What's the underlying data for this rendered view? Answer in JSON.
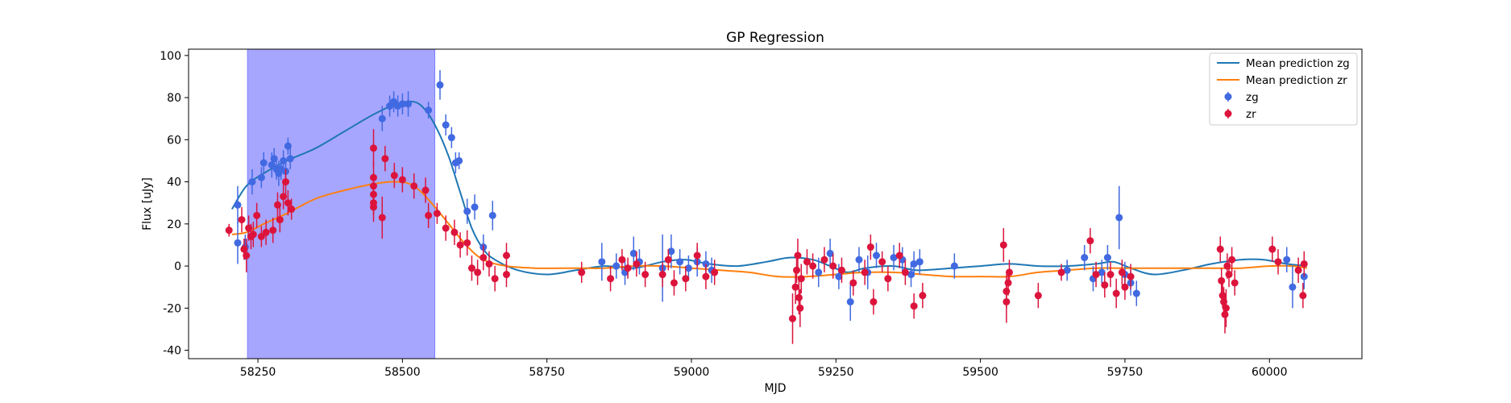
{
  "chart_data": {
    "type": "scatter",
    "title": "GP Regression",
    "xlabel": "MJD",
    "ylabel": "Flux [uJy]",
    "xlim": [
      58130,
      60160
    ],
    "ylim": [
      -44,
      103
    ],
    "xticks": [
      58250,
      58500,
      58750,
      59000,
      59250,
      59500,
      59750,
      60000
    ],
    "yticks": [
      -40,
      -20,
      0,
      20,
      40,
      60,
      80,
      100
    ],
    "grid": false,
    "legend_position": "top-right",
    "shaded_region": {
      "x_start": 58232,
      "x_end": 58556,
      "color": "#a6a6ff"
    },
    "colors": {
      "zg_line": "#1f77b4",
      "zr_line": "#ff7f0e",
      "zg_points": "#4169e1",
      "zr_points": "#dc143c"
    },
    "lines": [
      {
        "name": "Mean prediction zg",
        "color": "#1f77b4",
        "points": [
          [
            58205,
            27
          ],
          [
            58230,
            38
          ],
          [
            58260,
            44
          ],
          [
            58300,
            50
          ],
          [
            58350,
            56
          ],
          [
            58400,
            64
          ],
          [
            58450,
            72
          ],
          [
            58490,
            77
          ],
          [
            58520,
            78
          ],
          [
            58540,
            74
          ],
          [
            58560,
            65
          ],
          [
            58580,
            52
          ],
          [
            58600,
            35
          ],
          [
            58620,
            18
          ],
          [
            58640,
            8
          ],
          [
            58660,
            3
          ],
          [
            58700,
            -2
          ],
          [
            58750,
            -4
          ],
          [
            58800,
            -2
          ],
          [
            58850,
            0
          ],
          [
            58900,
            -1
          ],
          [
            58950,
            2
          ],
          [
            58990,
            3
          ],
          [
            59030,
            1
          ],
          [
            59080,
            0
          ],
          [
            59130,
            2
          ],
          [
            59170,
            4
          ],
          [
            59210,
            3
          ],
          [
            59240,
            0
          ],
          [
            59270,
            -3
          ],
          [
            59300,
            -1
          ],
          [
            59350,
            0
          ],
          [
            59390,
            -2
          ],
          [
            59450,
            -1
          ],
          [
            59500,
            0
          ],
          [
            59550,
            1
          ],
          [
            59600,
            0
          ],
          [
            59650,
            0
          ],
          [
            59700,
            1
          ],
          [
            59730,
            2
          ],
          [
            59760,
            -1
          ],
          [
            59800,
            -4
          ],
          [
            59850,
            -2
          ],
          [
            59900,
            1
          ],
          [
            59950,
            3
          ],
          [
            59990,
            3
          ],
          [
            60030,
            1
          ],
          [
            60065,
            0
          ]
        ]
      },
      {
        "name": "Mean prediction zr",
        "color": "#ff7f0e",
        "points": [
          [
            58205,
            15
          ],
          [
            58230,
            16
          ],
          [
            58260,
            20
          ],
          [
            58300,
            25
          ],
          [
            58350,
            32
          ],
          [
            58400,
            36
          ],
          [
            58450,
            39
          ],
          [
            58490,
            40
          ],
          [
            58520,
            38
          ],
          [
            58550,
            30
          ],
          [
            58580,
            20
          ],
          [
            58610,
            10
          ],
          [
            58640,
            3
          ],
          [
            58680,
            0
          ],
          [
            58730,
            -1
          ],
          [
            58800,
            -1
          ],
          [
            58850,
            -1
          ],
          [
            58900,
            0
          ],
          [
            58950,
            0
          ],
          [
            59000,
            -1
          ],
          [
            59050,
            -2
          ],
          [
            59100,
            -3
          ],
          [
            59150,
            -5
          ],
          [
            59200,
            -5
          ],
          [
            59250,
            -4
          ],
          [
            59300,
            -3
          ],
          [
            59350,
            -3
          ],
          [
            59400,
            -4
          ],
          [
            59450,
            -5
          ],
          [
            59500,
            -5
          ],
          [
            59550,
            -5
          ],
          [
            59600,
            -3
          ],
          [
            59650,
            -2
          ],
          [
            59700,
            -1
          ],
          [
            59750,
            -1
          ],
          [
            59800,
            -1
          ],
          [
            59850,
            -1
          ],
          [
            59900,
            -1
          ],
          [
            59950,
            -1
          ],
          [
            60000,
            0
          ],
          [
            60040,
            0
          ],
          [
            60065,
            -1
          ]
        ]
      }
    ],
    "series": [
      {
        "name": "zg",
        "color": "#4169e1",
        "points": [
          [
            58215,
            29,
            9
          ],
          [
            58215,
            11,
            10
          ],
          [
            58228,
            9,
            6
          ],
          [
            58240,
            40,
            6
          ],
          [
            58256,
            42,
            5
          ],
          [
            58260,
            49,
            5
          ],
          [
            58274,
            48,
            6
          ],
          [
            58278,
            51,
            5
          ],
          [
            58282,
            46,
            5
          ],
          [
            58286,
            44,
            6
          ],
          [
            58290,
            46,
            5
          ],
          [
            58294,
            50,
            5
          ],
          [
            58298,
            45,
            6
          ],
          [
            58302,
            57,
            4
          ],
          [
            58306,
            51,
            5
          ],
          [
            58465,
            70,
            6
          ],
          [
            58478,
            76,
            5
          ],
          [
            58485,
            78,
            5
          ],
          [
            58492,
            76,
            5
          ],
          [
            58500,
            77,
            5
          ],
          [
            58510,
            77,
            6
          ],
          [
            58545,
            74,
            4
          ],
          [
            58565,
            86,
            7
          ],
          [
            58575,
            67,
            5
          ],
          [
            58585,
            61,
            5
          ],
          [
            58592,
            49,
            5
          ],
          [
            58598,
            50,
            4
          ],
          [
            58612,
            26,
            6
          ],
          [
            58625,
            28,
            6
          ],
          [
            58640,
            9,
            6
          ],
          [
            58656,
            24,
            7
          ],
          [
            58845,
            2,
            9
          ],
          [
            58870,
            0,
            6
          ],
          [
            58885,
            -3,
            6
          ],
          [
            58900,
            6,
            8
          ],
          [
            58910,
            2,
            6
          ],
          [
            58950,
            -1,
            16
          ],
          [
            58965,
            7,
            8
          ],
          [
            58980,
            2,
            6
          ],
          [
            58995,
            -1,
            6
          ],
          [
            59010,
            2,
            7
          ],
          [
            59025,
            1,
            6
          ],
          [
            59035,
            -2,
            6
          ],
          [
            59220,
            -3,
            7
          ],
          [
            59240,
            6,
            7
          ],
          [
            59255,
            -5,
            6
          ],
          [
            59275,
            -17,
            9
          ],
          [
            59290,
            3,
            6
          ],
          [
            59305,
            -3,
            8
          ],
          [
            59320,
            5,
            6
          ],
          [
            59350,
            4,
            6
          ],
          [
            59365,
            3,
            6
          ],
          [
            59380,
            -4,
            6
          ],
          [
            59385,
            1,
            6
          ],
          [
            59395,
            2,
            6
          ],
          [
            59455,
            0,
            6
          ],
          [
            59650,
            -2,
            5
          ],
          [
            59680,
            4,
            6
          ],
          [
            59695,
            -6,
            6
          ],
          [
            59710,
            -3,
            6
          ],
          [
            59720,
            4,
            6
          ],
          [
            59740,
            23,
            15
          ],
          [
            59750,
            -4,
            6
          ],
          [
            59760,
            -8,
            6
          ],
          [
            59770,
            -13,
            6
          ],
          [
            60030,
            3,
            6
          ],
          [
            60040,
            -10,
            10
          ],
          [
            60060,
            -5,
            6
          ]
        ]
      },
      {
        "name": "zr",
        "color": "#dc143c",
        "points": [
          [
            58200,
            17,
            3
          ],
          [
            58222,
            22,
            6
          ],
          [
            58226,
            8,
            5
          ],
          [
            58230,
            5,
            8
          ],
          [
            58234,
            18,
            6
          ],
          [
            58238,
            14,
            6
          ],
          [
            58242,
            15,
            6
          ],
          [
            58248,
            24,
            6
          ],
          [
            58256,
            14,
            5
          ],
          [
            58264,
            16,
            6
          ],
          [
            58276,
            17,
            6
          ],
          [
            58284,
            29,
            6
          ],
          [
            58288,
            22,
            6
          ],
          [
            58294,
            33,
            6
          ],
          [
            58298,
            40,
            6
          ],
          [
            58302,
            30,
            6
          ],
          [
            58308,
            27,
            5
          ],
          [
            58450,
            56,
            9
          ],
          [
            58450,
            42,
            8
          ],
          [
            58450,
            38,
            6
          ],
          [
            58450,
            34,
            6
          ],
          [
            58450,
            30,
            6
          ],
          [
            58450,
            28,
            7
          ],
          [
            58465,
            23,
            10
          ],
          [
            58470,
            51,
            6
          ],
          [
            58486,
            43,
            6
          ],
          [
            58500,
            41,
            6
          ],
          [
            58520,
            38,
            6
          ],
          [
            58540,
            36,
            6
          ],
          [
            58545,
            24,
            6
          ],
          [
            58560,
            25,
            5
          ],
          [
            58575,
            18,
            6
          ],
          [
            58590,
            16,
            6
          ],
          [
            58600,
            10,
            6
          ],
          [
            58612,
            11,
            6
          ],
          [
            58620,
            -1,
            6
          ],
          [
            58630,
            -3,
            6
          ],
          [
            58640,
            4,
            6
          ],
          [
            58650,
            1,
            6
          ],
          [
            58660,
            -6,
            6
          ],
          [
            58680,
            -4,
            6
          ],
          [
            58680,
            5,
            6
          ],
          [
            58810,
            -3,
            5
          ],
          [
            58860,
            -6,
            6
          ],
          [
            58880,
            3,
            5
          ],
          [
            58890,
            -1,
            5
          ],
          [
            58905,
            1,
            6
          ],
          [
            58920,
            -4,
            6
          ],
          [
            58950,
            -4,
            6
          ],
          [
            58960,
            3,
            5
          ],
          [
            58970,
            -8,
            6
          ],
          [
            58990,
            -6,
            6
          ],
          [
            59010,
            5,
            6
          ],
          [
            59025,
            -5,
            6
          ],
          [
            59040,
            -3,
            6
          ],
          [
            59175,
            -25,
            12
          ],
          [
            59180,
            -10,
            8
          ],
          [
            59182,
            -2,
            6
          ],
          [
            59184,
            5,
            8
          ],
          [
            59186,
            -15,
            8
          ],
          [
            59188,
            -20,
            9
          ],
          [
            59190,
            -6,
            7
          ],
          [
            59200,
            2,
            6
          ],
          [
            59210,
            0,
            6
          ],
          [
            59230,
            3,
            6
          ],
          [
            59245,
            0,
            6
          ],
          [
            59260,
            -2,
            6
          ],
          [
            59280,
            -8,
            6
          ],
          [
            59300,
            -3,
            6
          ],
          [
            59310,
            9,
            6
          ],
          [
            59315,
            -17,
            6
          ],
          [
            59330,
            2,
            5
          ],
          [
            59340,
            -6,
            6
          ],
          [
            59360,
            5,
            6
          ],
          [
            59370,
            -3,
            6
          ],
          [
            59385,
            -19,
            6
          ],
          [
            59400,
            -14,
            6
          ],
          [
            59540,
            10,
            8
          ],
          [
            59545,
            -12,
            8
          ],
          [
            59545,
            -17,
            10
          ],
          [
            59548,
            -8,
            6
          ],
          [
            59550,
            -3,
            6
          ],
          [
            59600,
            -14,
            6
          ],
          [
            59640,
            -3,
            4
          ],
          [
            59690,
            12,
            6
          ],
          [
            59700,
            -4,
            6
          ],
          [
            59715,
            -9,
            6
          ],
          [
            59725,
            -4,
            6
          ],
          [
            59735,
            -13,
            7
          ],
          [
            59745,
            -3,
            6
          ],
          [
            59750,
            -10,
            6
          ],
          [
            59760,
            -5,
            6
          ],
          [
            59915,
            8,
            6
          ],
          [
            59917,
            -7,
            6
          ],
          [
            59919,
            -14,
            6
          ],
          [
            59921,
            -17,
            7
          ],
          [
            59923,
            -23,
            9
          ],
          [
            59925,
            -20,
            9
          ],
          [
            59927,
            0,
            6
          ],
          [
            59930,
            -4,
            6
          ],
          [
            59935,
            3,
            6
          ],
          [
            59940,
            -8,
            6
          ],
          [
            60005,
            8,
            6
          ],
          [
            60015,
            2,
            6
          ],
          [
            60050,
            -2,
            6
          ],
          [
            60058,
            -14,
            6
          ],
          [
            60060,
            1,
            6
          ]
        ]
      }
    ]
  }
}
